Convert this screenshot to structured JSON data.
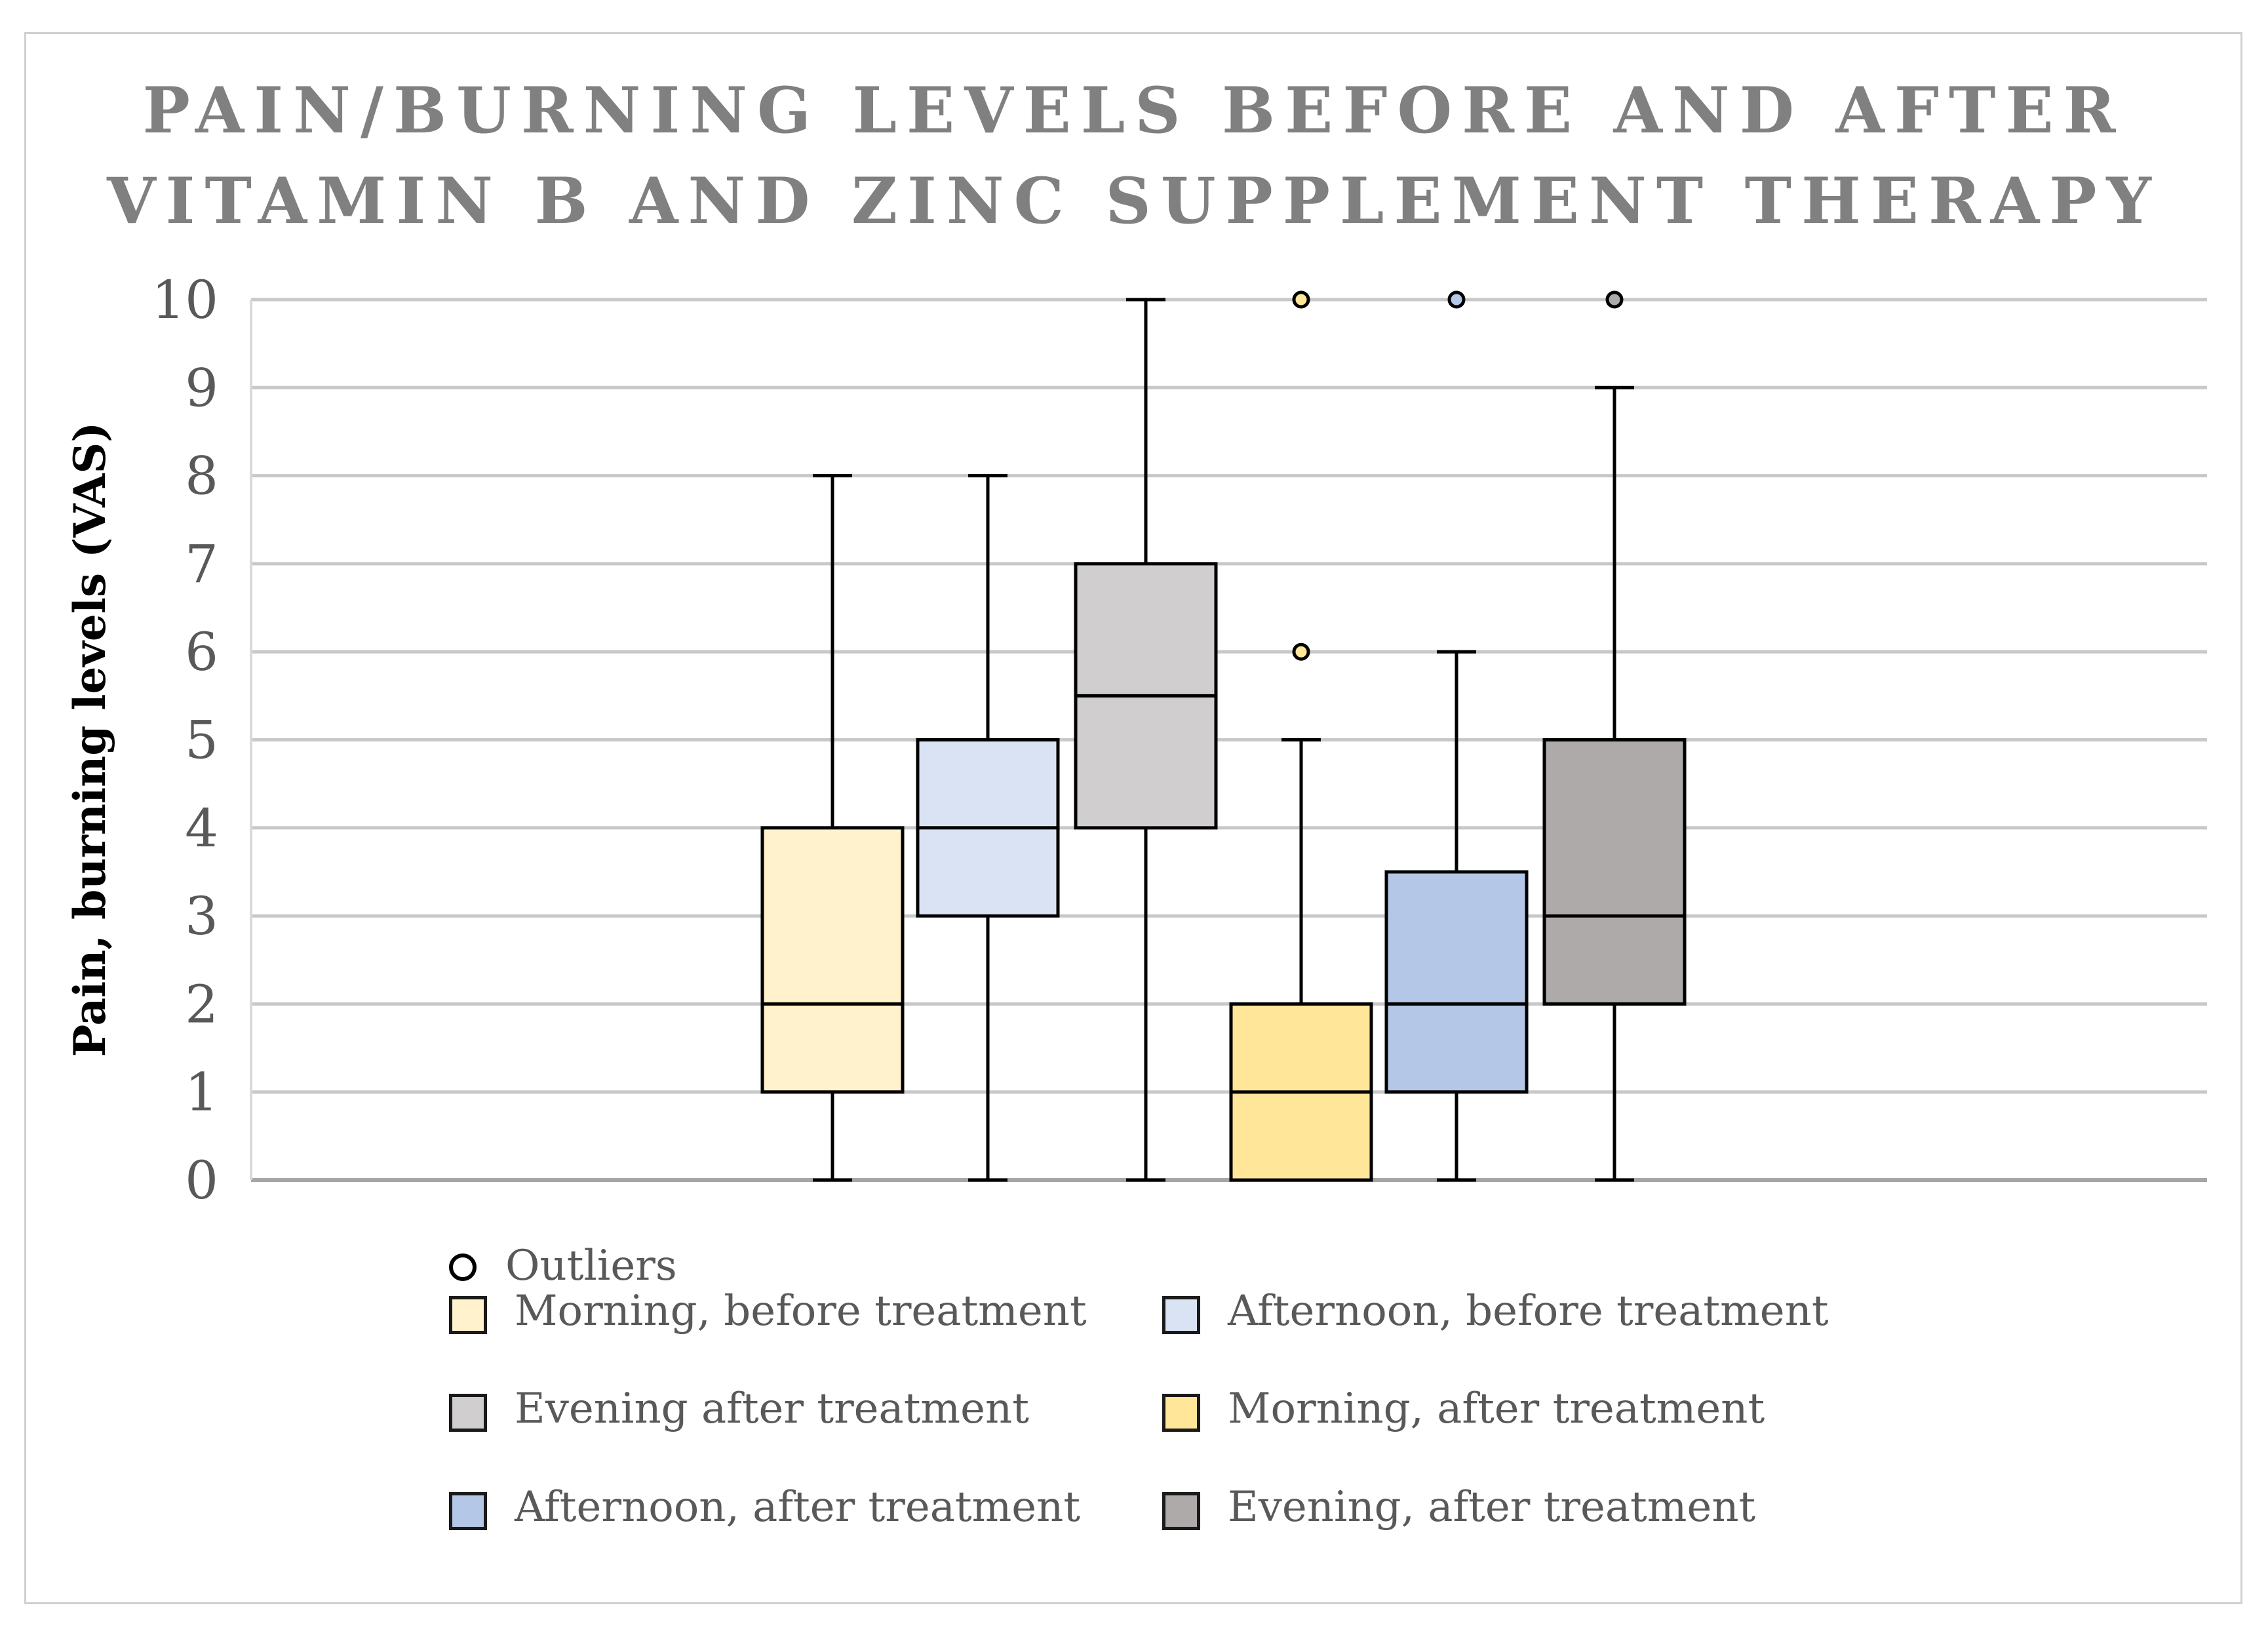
{
  "title_lines": [
    "PAIN/BURNING LEVELS BEFORE AND AFTER",
    "VITAMIN B AND ZINC SUPPLEMENT THERAPY"
  ],
  "chart_data": {
    "type": "box",
    "ylabel": "Pain, burning levels (VAS)",
    "ylim": [
      0,
      10
    ],
    "yticks": [
      0,
      1,
      2,
      3,
      4,
      5,
      6,
      7,
      8,
      9,
      10
    ],
    "grid": true,
    "legend_position": "bottom",
    "outlier_legend_label": "Outliers",
    "series": [
      {
        "name": "Morning, before treatment",
        "color": "#fff2cc",
        "min": 0,
        "q1": 1,
        "median": 2,
        "q3": 4,
        "max": 8,
        "outliers": []
      },
      {
        "name": "Afternoon, before treatment",
        "color": "#dae3f3",
        "min": 0,
        "q1": 3,
        "median": 4,
        "q3": 5,
        "max": 8,
        "outliers": []
      },
      {
        "name": "Evening after treatment",
        "color": "#d0cece",
        "min": 0,
        "q1": 4,
        "median": 5.5,
        "q3": 7,
        "max": 10,
        "outliers": []
      },
      {
        "name": "Morning, after treatment",
        "color": "#ffe699",
        "min": 0,
        "q1": 0,
        "median": 1,
        "q3": 2,
        "max": 5,
        "outliers": [
          6,
          10
        ]
      },
      {
        "name": "Afternoon, after treatment",
        "color": "#b4c7e7",
        "min": 0,
        "q1": 1,
        "median": 2,
        "q3": 3.5,
        "max": 6,
        "outliers": [
          10
        ]
      },
      {
        "name": "Evening, after treatment",
        "color": "#aeaaaa",
        "min": 0,
        "q1": 2,
        "median": 3,
        "q3": 5,
        "max": 9,
        "outliers": [
          10
        ]
      }
    ]
  }
}
